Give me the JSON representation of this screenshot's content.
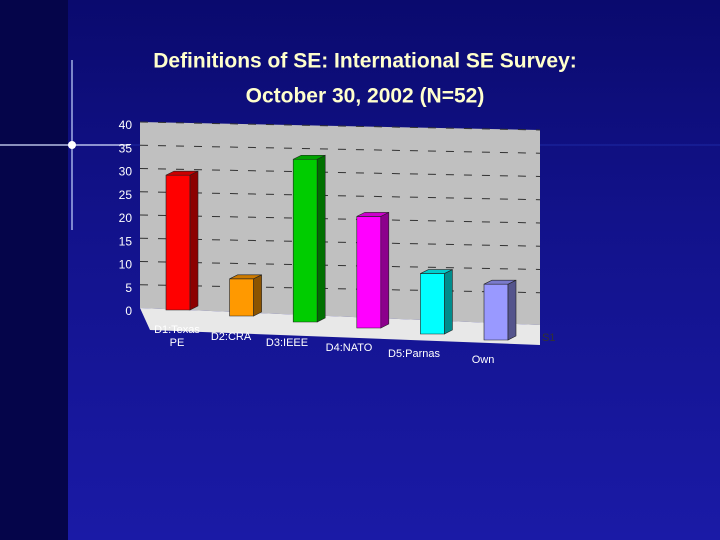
{
  "chart_data": {
    "type": "bar3d",
    "title_lines": [
      "Definitions of SE: International SE Survey:",
      "October 30, 2002 (N=52)"
    ],
    "categories": [
      "D1:Texas PE",
      "D2:CRA",
      "D3:IEEE",
      "D4:NATO",
      "D5:Parnas",
      "Own"
    ],
    "series": [
      {
        "name": "S1",
        "values": [
          29,
          8,
          35,
          24,
          13,
          12
        ],
        "colors": [
          "#ff0000",
          "#ff9900",
          "#00cc00",
          "#ff00ff",
          "#00ffff",
          "#9999ff"
        ]
      }
    ],
    "ylim": [
      0,
      40
    ],
    "yticks": [
      0,
      5,
      10,
      15,
      20,
      25,
      30,
      35,
      40
    ],
    "grid": true
  }
}
